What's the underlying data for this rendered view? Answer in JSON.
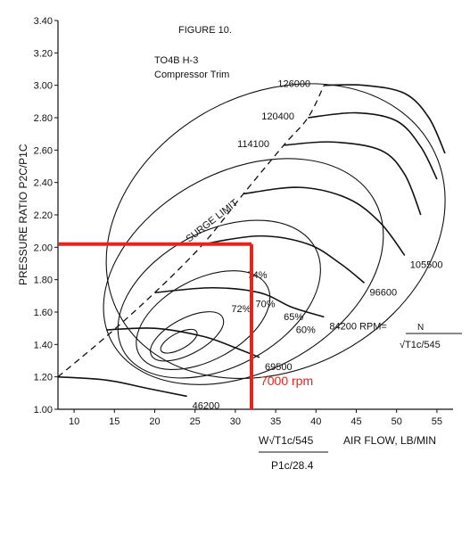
{
  "chart_data": {
    "type": "line",
    "figure_label": "FIGURE 10.",
    "title_line1": "TO4B H-3",
    "title_line2": "Compressor Trim",
    "ylabel": "PRESSURE RATIO  P2C/P1C",
    "xlabel": "AIR FLOW, LB/MIN",
    "xlabel_formula_num": "W√T1c/545",
    "xlabel_formula_den": "P1c/28.4",
    "xlim": [
      8,
      57
    ],
    "ylim": [
      1.0,
      3.4
    ],
    "x_ticks": [
      10,
      15,
      20,
      25,
      30,
      35,
      40,
      45,
      50,
      55
    ],
    "y_ticks": [
      "1.00",
      "1.20",
      "1.40",
      "1.60",
      "1.80",
      "2.00",
      "2.20",
      "2.40",
      "2.60",
      "2.80",
      "3.00",
      "3.20",
      "3.40"
    ],
    "surge_limit_label": "SURGE LIMIT",
    "surge_limit": [
      [
        8,
        1.2
      ],
      [
        14,
        1.45
      ],
      [
        20,
        1.72
      ],
      [
        26,
        2.02
      ],
      [
        31,
        2.33
      ],
      [
        36,
        2.63
      ],
      [
        39,
        2.8
      ],
      [
        41,
        3.0
      ]
    ],
    "speed_lines": [
      {
        "rpm": "46200",
        "points": [
          [
            8,
            1.2
          ],
          [
            14,
            1.18
          ],
          [
            19,
            1.13
          ],
          [
            24,
            1.08
          ]
        ],
        "label_at": [
          24,
          1.08
        ]
      },
      {
        "rpm": "69500",
        "points": [
          [
            14,
            1.49
          ],
          [
            20,
            1.5
          ],
          [
            26,
            1.45
          ],
          [
            30,
            1.38
          ],
          [
            33,
            1.32
          ]
        ],
        "label_at": [
          33,
          1.32
        ]
      },
      {
        "rpm": "84200 RPM=",
        "points": [
          [
            20,
            1.72
          ],
          [
            27,
            1.75
          ],
          [
            33,
            1.72
          ],
          [
            37,
            1.63
          ],
          [
            41,
            1.57
          ]
        ],
        "label_at": [
          41,
          1.57
        ]
      },
      {
        "rpm": "96600",
        "points": [
          [
            26,
            2.02
          ],
          [
            33,
            2.07
          ],
          [
            39,
            2.02
          ],
          [
            43,
            1.9
          ],
          [
            46,
            1.78
          ]
        ],
        "label_at": [
          46,
          1.78
        ]
      },
      {
        "rpm": "105500",
        "points": [
          [
            31,
            2.33
          ],
          [
            38,
            2.37
          ],
          [
            44,
            2.3
          ],
          [
            48,
            2.15
          ],
          [
            51,
            1.95
          ]
        ],
        "label_at": [
          51,
          1.95
        ]
      },
      {
        "rpm": "114100",
        "points": [
          [
            36,
            2.63
          ],
          [
            42,
            2.65
          ],
          [
            48,
            2.6
          ],
          [
            51,
            2.45
          ],
          [
            53,
            2.2
          ]
        ],
        "label_at": [
          36,
          2.63
        ]
      },
      {
        "rpm": "120400",
        "points": [
          [
            39,
            2.8
          ],
          [
            45,
            2.83
          ],
          [
            50,
            2.78
          ],
          [
            53,
            2.62
          ],
          [
            55,
            2.42
          ]
        ],
        "label_at": [
          39,
          2.8
        ]
      },
      {
        "rpm": "126000",
        "points": [
          [
            41,
            3.0
          ],
          [
            46,
            3.0
          ],
          [
            51,
            2.95
          ],
          [
            54,
            2.8
          ],
          [
            56,
            2.58
          ]
        ],
        "label_at": [
          41,
          3.0
        ]
      }
    ],
    "efficiency_islands": [
      {
        "label": "74%",
        "label_at": [
          31.5,
          1.81
        ]
      },
      {
        "label": "72%",
        "label_at": [
          29.5,
          1.6
        ]
      },
      {
        "label": "70%",
        "label_at": [
          32.5,
          1.63
        ]
      },
      {
        "label": "65%",
        "label_at": [
          36,
          1.55
        ]
      },
      {
        "label": "60%",
        "label_at": [
          37.5,
          1.47
        ]
      }
    ],
    "speed_formula_num": "N",
    "speed_formula_den": "√T1c/545",
    "operating_point": {
      "x": 32,
      "y": 2.02,
      "label": "7000 rpm",
      "color": "#e8231c"
    }
  }
}
